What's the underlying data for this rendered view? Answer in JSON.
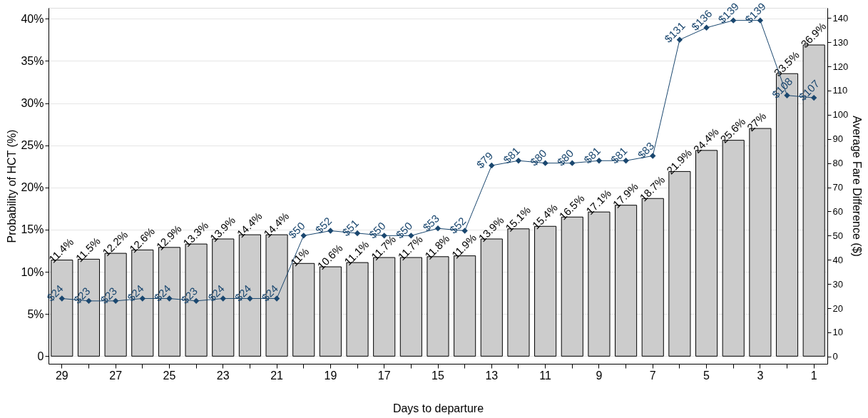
{
  "chart_data": {
    "type": "bar",
    "xlabel": "Days to departure",
    "ylabel": "Probability of HCT (%)",
    "y2label": "Average Fare Difference ($)",
    "categories": [
      "29",
      null,
      "27",
      null,
      "25",
      null,
      "23",
      null,
      "21",
      null,
      "19",
      null,
      "17",
      null,
      "15",
      null,
      "13",
      null,
      "11",
      null,
      "9",
      null,
      "7",
      null,
      "5",
      null,
      "3",
      null,
      "1"
    ],
    "series": [
      {
        "color": "#cccccc",
        "values": [
          11.4,
          11.5,
          12.2,
          12.6,
          12.9,
          13.3,
          13.9,
          14.4,
          14.4,
          11,
          10.6,
          11.1,
          11.7,
          11.7,
          11.8,
          11.9,
          13.9,
          15.1,
          15.4,
          16.5,
          17.1,
          17.9,
          18.7,
          21.9,
          24.4,
          25.6,
          27,
          33.5,
          36.9
        ],
        "value_labels": [
          "11.4%",
          "11.5%",
          "12.2%",
          "12.6%",
          "12.9%",
          "13.3%",
          "13.9%",
          "14.4%",
          "14.4%",
          "11%",
          "10.6%",
          "11.1%",
          "11.7%",
          "11.7%",
          "11.8%",
          "11.9%",
          "13.9%",
          "15.1%",
          "15.4%",
          "16.5%",
          "17.1%",
          "17.9%",
          "18.7%",
          "21.9%",
          "24.4%",
          "25.6%",
          "27%",
          "33.5%",
          "36.9%"
        ]
      },
      {
        "type": "line",
        "axis": "y2",
        "color": "#1a476f",
        "marker": "diamond",
        "values": [
          24,
          23,
          23,
          24,
          24,
          23,
          24,
          24,
          24,
          50,
          52,
          51,
          50,
          50,
          53,
          52,
          79,
          81,
          80,
          80,
          81,
          81,
          83,
          131,
          136,
          139,
          139,
          108,
          107
        ],
        "value_labels": [
          "$24",
          "$23",
          "$23",
          "$24",
          "$24",
          "$23",
          "$24",
          "$24",
          "$24",
          "$50",
          "$52",
          "$51",
          "$50",
          "$50",
          "$53",
          "$52",
          "$79",
          "$81",
          "$80",
          "$80",
          "$81",
          "$81",
          "$83",
          "$131",
          "$136",
          "$139",
          "$139",
          "$108",
          "$107"
        ]
      }
    ],
    "ylim": [
      -0.9,
      41.3
    ],
    "yticks": [
      0,
      {
        "value": 5,
        "label": "5%"
      },
      {
        "value": 10,
        "label": "10%"
      },
      {
        "value": 15,
        "label": "15%"
      },
      {
        "value": 20,
        "label": "20%"
      },
      {
        "value": 25,
        "label": "25%"
      },
      {
        "value": 30,
        "label": "30%"
      },
      {
        "value": 35,
        "label": "35%"
      },
      {
        "value": 40,
        "label": "40%"
      }
    ],
    "y2lim": [
      -3,
      144.2
    ],
    "y2ticks": [
      0,
      10,
      20,
      30,
      40,
      50,
      60,
      70,
      80,
      90,
      100,
      110,
      120,
      130,
      140
    ],
    "grid": "y"
  }
}
